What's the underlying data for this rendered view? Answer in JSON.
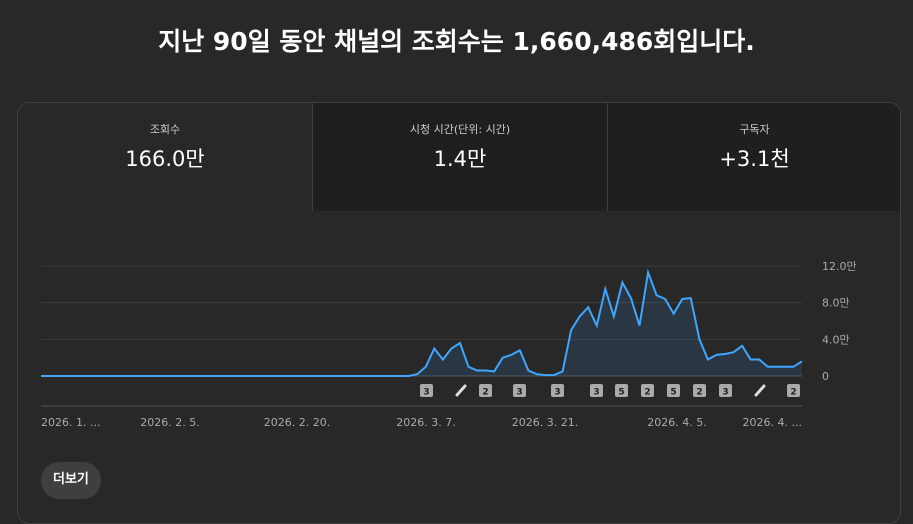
{
  "header": {
    "title": "지난 90일 동안 채널의 조회수는 1,660,486회입니다."
  },
  "tabs": [
    {
      "label": "조회수",
      "value": "166.0만"
    },
    {
      "label": "시청 시간(단위: 시간)",
      "value": "1.4만"
    },
    {
      "label": "구독자",
      "value": "+3.1천"
    }
  ],
  "chart": {
    "type": "line",
    "color": "#3ea6ff",
    "x_labels": [
      "2026. 1. ...",
      "2026. 2. 5.",
      "2026. 2. 20.",
      "2026. 3. 7.",
      "2026. 3. 21.",
      "2026. 4. 5.",
      "2026. 4. ..."
    ],
    "values": [
      0,
      0,
      0,
      0,
      0,
      0,
      0,
      0,
      0,
      0,
      0,
      0,
      0,
      0,
      0,
      0,
      0,
      0,
      0,
      0,
      0,
      0,
      0,
      0,
      0,
      0,
      0,
      0,
      0,
      0,
      0,
      0,
      0,
      0,
      0,
      0,
      0,
      0,
      0,
      0,
      0,
      0,
      0,
      0,
      0.2,
      1.0,
      3.0,
      1.8,
      3.0,
      3.6,
      1.0,
      0.6,
      0.6,
      0.5,
      2.0,
      2.3,
      2.8,
      0.6,
      0.2,
      0.1,
      0.1,
      0.5,
      5.0,
      6.5,
      7.5,
      5.5,
      9.5,
      6.5,
      10.2,
      8.5,
      5.5,
      11.3,
      8.8,
      8.4,
      6.8,
      8.4,
      8.5,
      4.0,
      1.8,
      2.3,
      2.4,
      2.6,
      3.3,
      1.8,
      1.8,
      1.0,
      1.0,
      1.0,
      1.0,
      1.6
    ],
    "ylim": [
      0,
      12
    ],
    "yticks": [
      0,
      {
        "value": 4,
        "label": "4.0만"
      },
      {
        "value": 8,
        "label": "8.0만"
      },
      {
        "value": 12,
        "label": "12.0만"
      }
    ],
    "grid": true,
    "markers": [
      "3",
      "2",
      "3",
      "3",
      "3",
      "5",
      "2",
      "5",
      "2",
      "3",
      "2"
    ]
  },
  "button": {
    "label": "더보기"
  }
}
